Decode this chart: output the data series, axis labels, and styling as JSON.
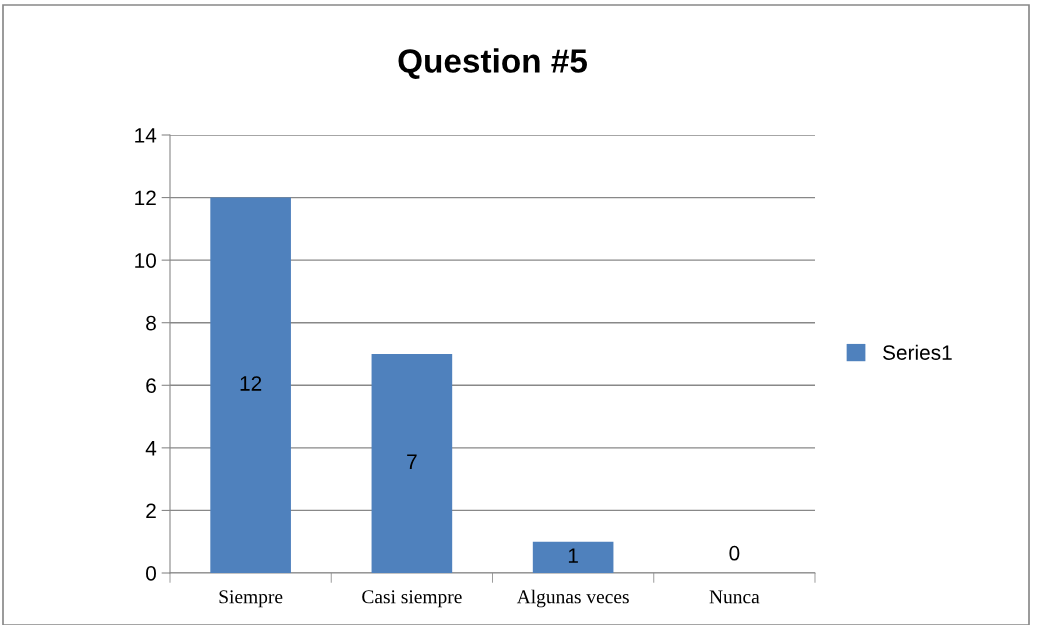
{
  "chart_data": {
    "type": "bar",
    "title": "Question #5",
    "categories": [
      "Siempre",
      "Casi siempre",
      "Algunas veces",
      "Nunca"
    ],
    "series": [
      {
        "name": "Series1",
        "color": "#4f81bd",
        "values": [
          12,
          7,
          1,
          0
        ]
      }
    ],
    "ylim": [
      0,
      14
    ],
    "yticks": [
      0,
      2,
      4,
      6,
      8,
      10,
      12,
      14
    ],
    "grid": "y",
    "legend": "right",
    "data_labels": true
  }
}
